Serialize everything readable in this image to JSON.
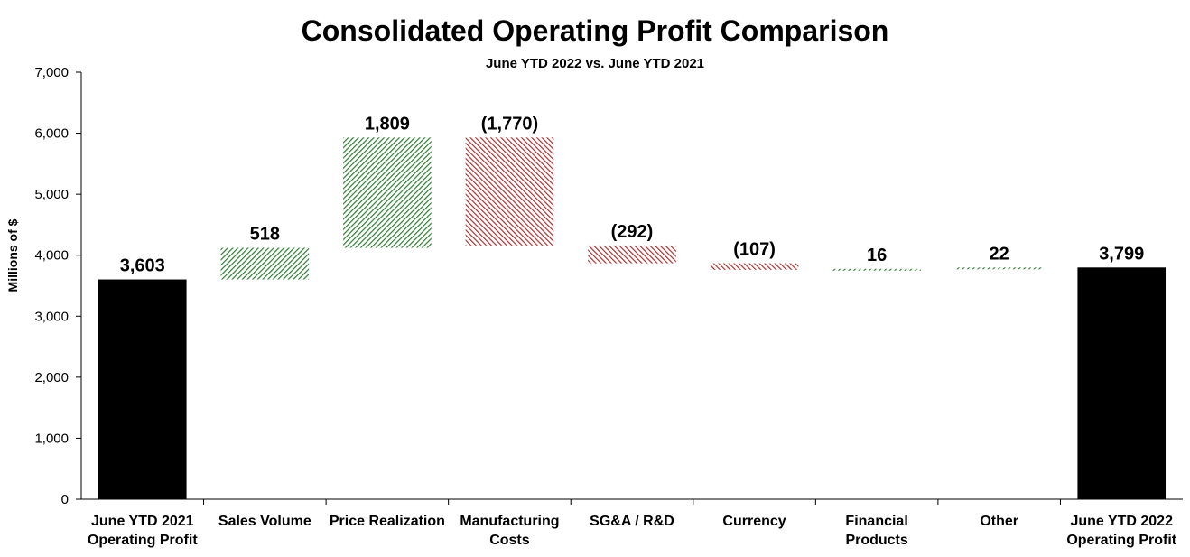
{
  "chart_data": {
    "type": "bar",
    "subtype": "waterfall",
    "title": "Consolidated Operating Profit Comparison",
    "subtitle": "June YTD 2022 vs. June YTD 2021",
    "ylabel": "Millions of $",
    "xlabel": "",
    "ylim": [
      0,
      7000
    ],
    "yticks": [
      0,
      1000,
      2000,
      3000,
      4000,
      5000,
      6000,
      7000
    ],
    "ytick_labels": [
      "0",
      "1,000",
      "2,000",
      "3,000",
      "4,000",
      "5,000",
      "6,000",
      "7,000"
    ],
    "grid": false,
    "legend": "none",
    "categories": [
      [
        "June YTD 2021",
        "Operating Profit"
      ],
      [
        "Sales Volume"
      ],
      [
        "Price Realization"
      ],
      [
        "Manufacturing",
        "Costs"
      ],
      [
        "SG&A / R&D"
      ],
      [
        "Currency"
      ],
      [
        "Financial",
        "Products"
      ],
      [
        "Other"
      ],
      [
        "June YTD 2022",
        "Operating Profit"
      ]
    ],
    "values": [
      3603,
      518,
      1809,
      -1770,
      -292,
      -107,
      16,
      22,
      3799
    ],
    "kinds": [
      "total",
      "delta",
      "delta",
      "delta",
      "delta",
      "delta",
      "delta",
      "delta",
      "total"
    ],
    "data_labels": [
      "3,603",
      "518",
      "1,809",
      "(1,770)",
      "(292)",
      "(107)",
      "16",
      "22",
      "3,799"
    ],
    "colors": {
      "total": "#000000",
      "increase": "#2e7d32",
      "decrease": "#a83232"
    }
  }
}
